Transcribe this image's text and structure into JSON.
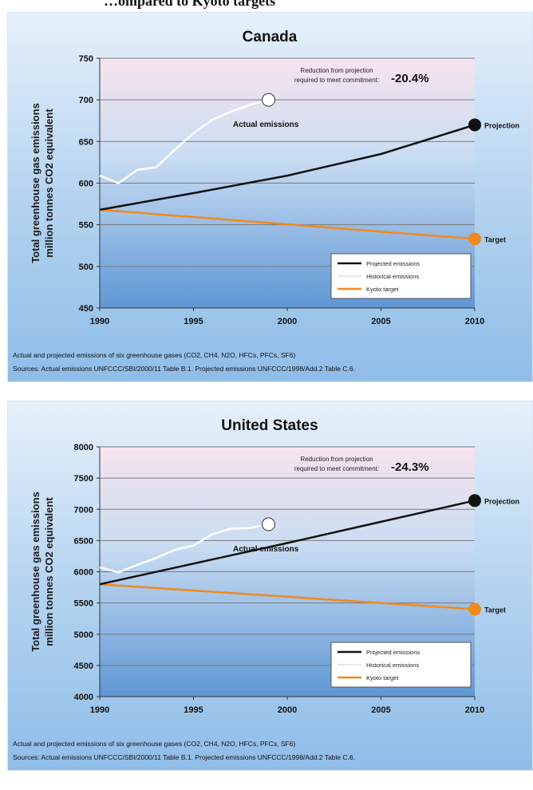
{
  "header_caption": "…ompared to Kyoto targets",
  "chart_data": [
    {
      "type": "line",
      "title": "Canada",
      "ylabel": [
        "Total greenhouse gas emissions",
        "million tonnes CO2 equivalent"
      ],
      "xlim": [
        1990,
        2010
      ],
      "ylim": [
        450,
        750
      ],
      "xticks": [
        1990,
        1995,
        2000,
        2005,
        2010
      ],
      "yticks": [
        450,
        500,
        550,
        600,
        650,
        700,
        750
      ],
      "grid": true,
      "legend_position": "bottom-right",
      "reduction_text": [
        "Reduction from projection",
        "required to meet commitment:"
      ],
      "reduction_value": "-20.4%",
      "actual_label": "Actual emissions",
      "projection_label": "Projection",
      "target_label": "Target",
      "series": [
        {
          "name": "Projected emissions",
          "color": "#111111",
          "x": [
            1990,
            1995,
            2000,
            2005,
            2010
          ],
          "y": [
            568,
            588,
            609,
            635,
            670
          ]
        },
        {
          "name": "Historical emissions",
          "color": "#ffffff",
          "x": [
            1990,
            1991,
            1992,
            1993,
            1994,
            1995,
            1996,
            1997,
            1998,
            1999
          ],
          "y": [
            609,
            600,
            616,
            619,
            640,
            660,
            676,
            686,
            694,
            700
          ]
        },
        {
          "name": "Kyoto target",
          "color": "#f08a1e",
          "x": [
            1990,
            2010
          ],
          "y": [
            568,
            533
          ]
        }
      ],
      "footnotes": [
        "Actual and projected emissions of six greenhouse gases (CO2, CH4, N2O, HFCs, PFCs, SF6)",
        "Sources:  Actual emissions UNFCCC/SBI/2000/11 Table B.1.   Projected emissions UNFCCC/1998/Add.2 Table C.6."
      ]
    },
    {
      "type": "line",
      "title": "United States",
      "ylabel": [
        "Total greenhouse gas emissions",
        "million tonnes CO2 equivalent"
      ],
      "xlim": [
        1990,
        2010
      ],
      "ylim": [
        4000,
        8000
      ],
      "xticks": [
        1990,
        1995,
        2000,
        2005,
        2010
      ],
      "yticks": [
        4000,
        4500,
        5000,
        5500,
        6000,
        6500,
        7000,
        7500,
        8000
      ],
      "grid": true,
      "legend_position": "bottom-right",
      "reduction_text": [
        "Reduction from projection",
        "required to meet commitment:"
      ],
      "reduction_value": "-24.3%",
      "actual_label": "Actual emissions",
      "projection_label": "Projection",
      "target_label": "Target",
      "series": [
        {
          "name": "Projected emissions",
          "color": "#111111",
          "x": [
            1990,
            1995,
            2000,
            2005,
            2010
          ],
          "y": [
            5800,
            6130,
            6460,
            6800,
            7140
          ]
        },
        {
          "name": "Historical emissions",
          "color": "#ffffff",
          "x": [
            1990,
            1991,
            1992,
            1993,
            1994,
            1995,
            1996,
            1997,
            1998,
            1999
          ],
          "y": [
            6070,
            5990,
            6110,
            6220,
            6350,
            6420,
            6600,
            6690,
            6700,
            6760
          ]
        },
        {
          "name": "Kyoto target",
          "color": "#f08a1e",
          "x": [
            1990,
            2010
          ],
          "y": [
            5800,
            5400
          ]
        }
      ],
      "footnotes": [
        "Actual and projected emissions of six greenhouse gases (CO2, CH4, N2O, HFCs, PFCs, SF6)",
        "Sources:  Actual emissions UNFCCC/SBI/2000/11 Table B.1.   Projected emissions UNFCCC/1998/Add.2 Table C.6."
      ]
    }
  ]
}
